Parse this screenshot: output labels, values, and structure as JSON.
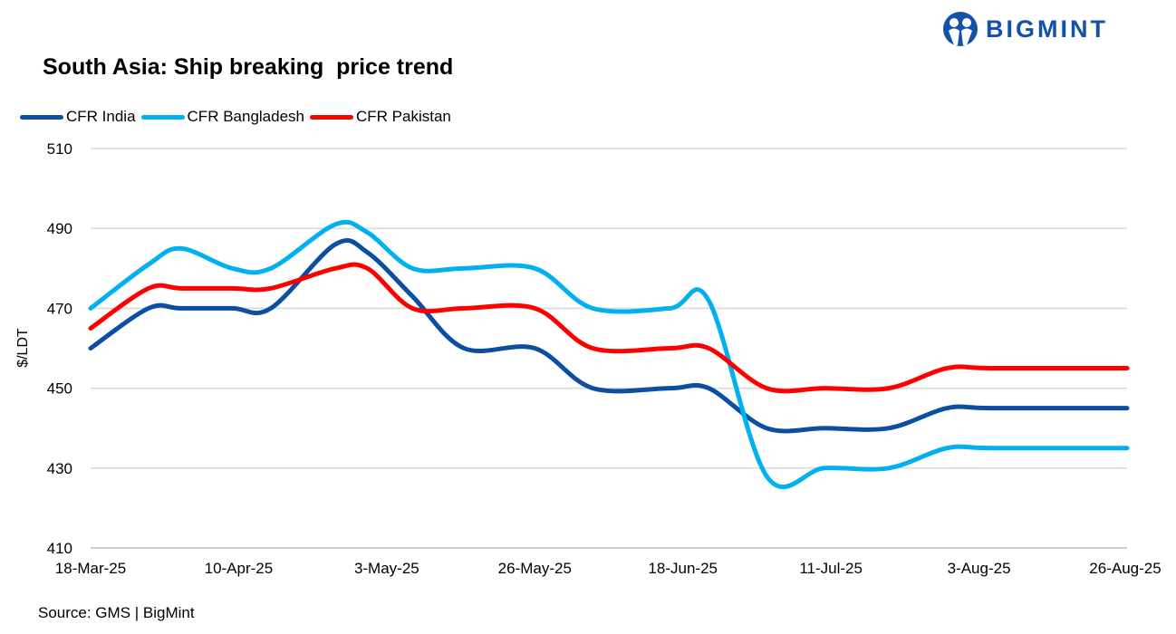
{
  "logo": {
    "text": "BIGMINT"
  },
  "source": "Source: GMS | BigMint",
  "chart_data": {
    "type": "line",
    "title": "South Asia: Ship breaking  price trend",
    "ylabel": "$/LDT",
    "xlabel": "",
    "ylim": [
      410,
      510
    ],
    "yticks": [
      410,
      430,
      450,
      470,
      490,
      510
    ],
    "xlim": [
      "2025-03-18",
      "2025-08-26"
    ],
    "xtick_labels": [
      "18-Mar-25",
      "10-Apr-25",
      "3-May-25",
      "26-May-25",
      "18-Jun-25",
      "11-Jul-25",
      "3-Aug-25",
      "26-Aug-25"
    ],
    "xtick_dates": [
      "2025-03-18",
      "2025-04-10",
      "2025-05-03",
      "2025-05-26",
      "2025-06-18",
      "2025-07-11",
      "2025-08-03",
      "2025-08-26"
    ],
    "grid": true,
    "legend_placement": "top-left",
    "x": [
      "2025-03-18",
      "2025-03-27",
      "2025-04-01",
      "2025-04-09",
      "2025-04-15",
      "2025-04-25",
      "2025-04-30",
      "2025-05-07",
      "2025-05-15",
      "2025-05-26",
      "2025-06-04",
      "2025-06-16",
      "2025-06-22",
      "2025-07-01",
      "2025-07-10",
      "2025-07-20",
      "2025-07-29",
      "2025-08-05",
      "2025-08-26"
    ],
    "series": [
      {
        "name": "CFR India",
        "color": "#0b4ea2",
        "values": [
          460,
          470,
          470,
          470,
          470,
          486,
          484,
          473,
          460,
          460,
          450,
          450,
          450,
          440,
          440,
          440,
          445,
          445,
          445
        ]
      },
      {
        "name": "CFR Bangladesh",
        "color": "#00b0f0",
        "values": [
          470,
          481,
          485,
          480,
          480,
          491,
          489,
          480,
          480,
          480,
          470,
          470,
          472,
          428,
          430,
          430,
          435,
          435,
          435
        ]
      },
      {
        "name": "CFR Pakistan",
        "color": "#ff0000",
        "values": [
          465,
          475,
          475,
          475,
          475,
          480,
          480,
          470,
          470,
          470,
          460,
          460,
          460,
          450,
          450,
          450,
          455,
          455,
          455
        ]
      }
    ]
  }
}
